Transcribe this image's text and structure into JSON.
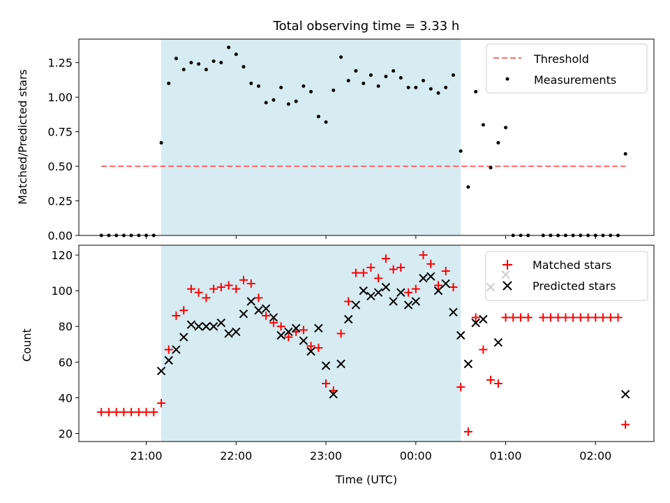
{
  "figure": {
    "title": "Total observing time = 3.33 h"
  },
  "chart_data": [
    {
      "type": "scatter",
      "ylabel": "Matched/Predicted stars",
      "ylim": [
        0,
        1.42
      ],
      "xlim": [
        20.25,
        2.65
      ],
      "yticks": [
        0.0,
        0.25,
        0.5,
        0.75,
        1.0,
        1.25
      ],
      "ytick_labels": [
        "0.00",
        "0.25",
        "0.50",
        "0.75",
        "1.00",
        "1.25"
      ],
      "shaded_span": {
        "start": 21.167,
        "end": 0.5,
        "color": "#add8e6"
      },
      "legend_position": "top-right",
      "series": [
        {
          "name": "Threshold",
          "style": "dashed-line",
          "color": "#ff6b6b",
          "x": [
            20.5,
            2.333
          ],
          "y": [
            0.5,
            0.5
          ]
        },
        {
          "name": "Measurements",
          "style": "dot",
          "color": "#000000",
          "points": [
            [
              20.5,
              0
            ],
            [
              20.583,
              0
            ],
            [
              20.667,
              0
            ],
            [
              20.75,
              0
            ],
            [
              20.833,
              0
            ],
            [
              20.917,
              0
            ],
            [
              21.0,
              0
            ],
            [
              21.083,
              0
            ],
            [
              21.167,
              0.67
            ],
            [
              21.25,
              1.1
            ],
            [
              21.333,
              1.28
            ],
            [
              21.417,
              1.2
            ],
            [
              21.5,
              1.25
            ],
            [
              21.583,
              1.24
            ],
            [
              21.667,
              1.2
            ],
            [
              21.75,
              1.26
            ],
            [
              21.833,
              1.25
            ],
            [
              21.917,
              1.36
            ],
            [
              22.0,
              1.31
            ],
            [
              22.083,
              1.22
            ],
            [
              22.167,
              1.1
            ],
            [
              22.25,
              1.08
            ],
            [
              22.333,
              0.96
            ],
            [
              22.417,
              0.98
            ],
            [
              22.5,
              1.07
            ],
            [
              22.583,
              0.95
            ],
            [
              22.667,
              0.97
            ],
            [
              22.75,
              1.08
            ],
            [
              22.833,
              1.04
            ],
            [
              22.917,
              0.86
            ],
            [
              23.0,
              0.82
            ],
            [
              23.083,
              1.05
            ],
            [
              23.167,
              1.29
            ],
            [
              23.25,
              1.12
            ],
            [
              23.333,
              1.19
            ],
            [
              23.417,
              1.1
            ],
            [
              23.5,
              1.16
            ],
            [
              23.583,
              1.08
            ],
            [
              23.667,
              1.15
            ],
            [
              23.75,
              1.19
            ],
            [
              23.833,
              1.14
            ],
            [
              23.917,
              1.07
            ],
            [
              0.0,
              1.07
            ],
            [
              0.083,
              1.12
            ],
            [
              0.167,
              1.06
            ],
            [
              0.25,
              1.03
            ],
            [
              0.333,
              1.07
            ],
            [
              0.417,
              1.16
            ],
            [
              0.5,
              0.61
            ],
            [
              0.583,
              0.35
            ],
            [
              0.667,
              1.04
            ],
            [
              0.75,
              0.8
            ],
            [
              0.833,
              0.49
            ],
            [
              0.917,
              0.67
            ],
            [
              1.0,
              0.78
            ],
            [
              1.083,
              0
            ],
            [
              1.167,
              0
            ],
            [
              1.25,
              0
            ],
            [
              1.417,
              0
            ],
            [
              1.5,
              0
            ],
            [
              1.583,
              0
            ],
            [
              1.667,
              0
            ],
            [
              1.75,
              0
            ],
            [
              1.833,
              0
            ],
            [
              1.917,
              0
            ],
            [
              2.0,
              0
            ],
            [
              2.083,
              0
            ],
            [
              2.167,
              0
            ],
            [
              2.25,
              0
            ],
            [
              2.333,
              0.59
            ]
          ]
        }
      ]
    },
    {
      "type": "scatter",
      "xlabel": "Time (UTC)",
      "ylabel": "Count",
      "ylim": [
        15.5,
        125.5
      ],
      "xlim": [
        20.25,
        2.65
      ],
      "yticks": [
        20,
        40,
        60,
        80,
        100,
        120
      ],
      "ytick_labels": [
        "20",
        "40",
        "60",
        "80",
        "100",
        "120"
      ],
      "xticks": [
        21,
        22,
        23,
        0,
        1,
        2
      ],
      "xtick_labels": [
        "21:00",
        "22:00",
        "23:00",
        "00:00",
        "01:00",
        "02:00"
      ],
      "shaded_span": {
        "start": 21.167,
        "end": 0.5,
        "color": "#add8e6"
      },
      "legend_position": "top-right",
      "series": [
        {
          "name": "Matched stars",
          "marker": "plus",
          "color": "#ff0000",
          "points": [
            [
              20.5,
              32
            ],
            [
              20.583,
              32
            ],
            [
              20.667,
              32
            ],
            [
              20.75,
              32
            ],
            [
              20.833,
              32
            ],
            [
              20.917,
              32
            ],
            [
              21.0,
              32
            ],
            [
              21.083,
              32
            ],
            [
              21.167,
              37
            ],
            [
              21.25,
              67
            ],
            [
              21.333,
              86
            ],
            [
              21.417,
              89
            ],
            [
              21.5,
              101
            ],
            [
              21.583,
              99
            ],
            [
              21.667,
              96
            ],
            [
              21.75,
              101
            ],
            [
              21.833,
              102
            ],
            [
              21.917,
              103
            ],
            [
              22.0,
              101
            ],
            [
              22.083,
              106
            ],
            [
              22.167,
              104
            ],
            [
              22.25,
              96
            ],
            [
              22.333,
              86
            ],
            [
              22.417,
              82
            ],
            [
              22.5,
              80
            ],
            [
              22.583,
              74
            ],
            [
              22.667,
              77
            ],
            [
              22.75,
              78
            ],
            [
              22.833,
              69
            ],
            [
              22.917,
              68
            ],
            [
              23.0,
              48
            ],
            [
              23.083,
              44
            ],
            [
              23.167,
              76
            ],
            [
              23.25,
              94
            ],
            [
              23.333,
              110
            ],
            [
              23.417,
              110
            ],
            [
              23.5,
              113
            ],
            [
              23.583,
              107
            ],
            [
              23.667,
              118
            ],
            [
              23.75,
              112
            ],
            [
              23.833,
              113
            ],
            [
              23.917,
              99
            ],
            [
              0.0,
              101
            ],
            [
              0.083,
              120
            ],
            [
              0.167,
              115
            ],
            [
              0.25,
              103
            ],
            [
              0.333,
              111
            ],
            [
              0.417,
              102
            ],
            [
              0.5,
              46
            ],
            [
              0.583,
              21
            ],
            [
              0.667,
              85
            ],
            [
              0.75,
              67
            ],
            [
              0.833,
              50
            ],
            [
              0.917,
              48
            ],
            [
              1.0,
              85
            ],
            [
              1.083,
              85
            ],
            [
              1.167,
              85
            ],
            [
              1.25,
              85
            ],
            [
              1.417,
              85
            ],
            [
              1.5,
              85
            ],
            [
              1.583,
              85
            ],
            [
              1.667,
              85
            ],
            [
              1.75,
              85
            ],
            [
              1.833,
              85
            ],
            [
              1.917,
              85
            ],
            [
              2.0,
              85
            ],
            [
              2.083,
              85
            ],
            [
              2.167,
              85
            ],
            [
              2.25,
              85
            ],
            [
              2.333,
              25
            ]
          ]
        },
        {
          "name": "Predicted stars",
          "marker": "x",
          "color": "#000000",
          "points": [
            [
              21.167,
              55
            ],
            [
              21.25,
              61
            ],
            [
              21.333,
              67
            ],
            [
              21.417,
              74
            ],
            [
              21.5,
              81
            ],
            [
              21.583,
              80
            ],
            [
              21.667,
              80
            ],
            [
              21.75,
              80
            ],
            [
              21.833,
              82
            ],
            [
              21.917,
              76
            ],
            [
              22.0,
              77
            ],
            [
              22.083,
              87
            ],
            [
              22.167,
              94
            ],
            [
              22.25,
              89
            ],
            [
              22.333,
              90
            ],
            [
              22.417,
              85
            ],
            [
              22.5,
              75
            ],
            [
              22.583,
              77
            ],
            [
              22.667,
              79
            ],
            [
              22.75,
              72
            ],
            [
              22.833,
              66
            ],
            [
              22.917,
              79
            ],
            [
              23.0,
              58
            ],
            [
              23.083,
              42
            ],
            [
              23.167,
              59
            ],
            [
              23.25,
              84
            ],
            [
              23.333,
              92
            ],
            [
              23.417,
              100
            ],
            [
              23.5,
              97
            ],
            [
              23.583,
              99
            ],
            [
              23.667,
              102
            ],
            [
              23.75,
              94
            ],
            [
              23.833,
              99
            ],
            [
              23.917,
              92
            ],
            [
              0.0,
              94
            ],
            [
              0.083,
              107
            ],
            [
              0.167,
              108
            ],
            [
              0.25,
              100
            ],
            [
              0.333,
              104
            ],
            [
              0.417,
              88
            ],
            [
              0.5,
              75
            ],
            [
              0.583,
              59
            ],
            [
              0.667,
              82
            ],
            [
              0.75,
              84
            ],
            [
              0.833,
              102
            ],
            [
              0.917,
              71
            ],
            [
              1.0,
              109
            ],
            [
              2.333,
              42
            ]
          ]
        }
      ]
    }
  ]
}
